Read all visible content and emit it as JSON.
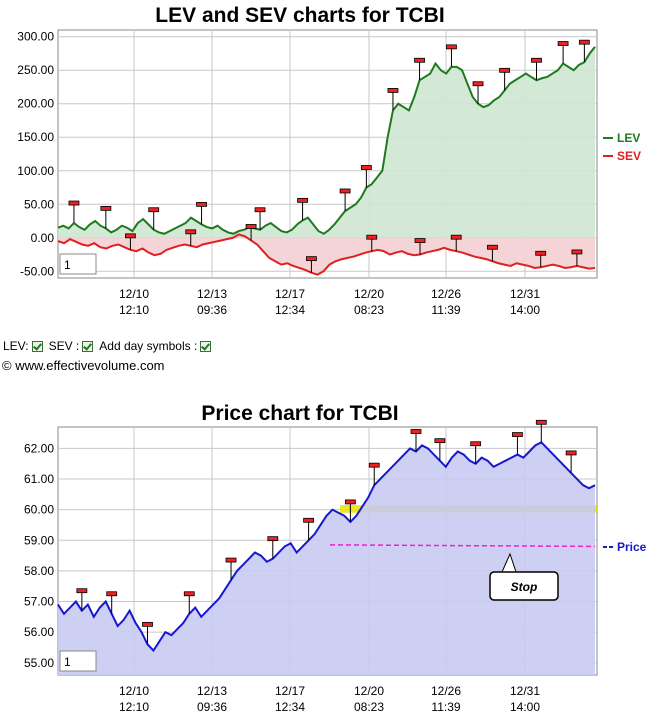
{
  "chart_data": [
    {
      "type": "line",
      "title": "LEV and SEV charts for TCBI",
      "ylim": [
        -60,
        310
      ],
      "yticks": [
        "300.00",
        "250.00",
        "200.00",
        "150.00",
        "100.00",
        "50.00",
        "0.00",
        "-50.00"
      ],
      "x_tick_labels": [
        [
          "12/10",
          "12:10"
        ],
        [
          "12/13",
          "09:36"
        ],
        [
          "12/17",
          "12:34"
        ],
        [
          "12/20",
          "08:23"
        ],
        [
          "12/26",
          "11:39"
        ],
        [
          "12/31",
          "14:00"
        ]
      ],
      "legend": [
        "LEV",
        "SEV"
      ],
      "legend_position": "right",
      "grid": true,
      "zoom_box": "1",
      "series": [
        {
          "name": "LEV",
          "color": "#1e7a1e",
          "fill": "#cfe5d2",
          "values": [
            15,
            18,
            14,
            22,
            16,
            12,
            20,
            25,
            18,
            14,
            8,
            12,
            18,
            15,
            10,
            22,
            28,
            20,
            12,
            8,
            6,
            10,
            14,
            18,
            22,
            30,
            25,
            20,
            16,
            14,
            18,
            12,
            8,
            6,
            10,
            12,
            16,
            14,
            12,
            18,
            22,
            16,
            10,
            8,
            12,
            20,
            26,
            30,
            20,
            10,
            6,
            12,
            20,
            30,
            40,
            45,
            50,
            60,
            75,
            80,
            90,
            100,
            150,
            190,
            200,
            195,
            190,
            210,
            235,
            240,
            245,
            260,
            250,
            245,
            255,
            255,
            250,
            230,
            210,
            200,
            195,
            198,
            205,
            210,
            220,
            230,
            235,
            240,
            245,
            240,
            235,
            238,
            240,
            245,
            250,
            260,
            255,
            250,
            258,
            262,
            275,
            285
          ]
        },
        {
          "name": "SEV",
          "color": "#e02020",
          "fill": "#f3cfd3",
          "values": [
            -5,
            -8,
            -2,
            -6,
            -10,
            -12,
            -8,
            -14,
            -16,
            -12,
            -10,
            -14,
            -18,
            -20,
            -16,
            -22,
            -26,
            -24,
            -18,
            -15,
            -12,
            -10,
            -12,
            -14,
            -10,
            -8,
            -6,
            -4,
            -2,
            0,
            5,
            2,
            -4,
            -10,
            -20,
            -30,
            -35,
            -40,
            -38,
            -42,
            -45,
            -48,
            -52,
            -55,
            -50,
            -40,
            -35,
            -32,
            -30,
            -28,
            -25,
            -22,
            -20,
            -18,
            -20,
            -25,
            -22,
            -20,
            -24,
            -26,
            -25,
            -22,
            -20,
            -18,
            -15,
            -18,
            -20,
            -22,
            -25,
            -28,
            -30,
            -32,
            -35,
            -38,
            -40,
            -42,
            -38,
            -40,
            -42,
            -45,
            -44,
            -42,
            -40,
            -42,
            -45,
            -44,
            -42,
            -44,
            -46,
            -45
          ]
        }
      ]
    },
    {
      "type": "line",
      "title": "Price chart for TCBI",
      "ylim": [
        54.6,
        62.7
      ],
      "yticks": [
        "62.00",
        "61.00",
        "60.00",
        "59.00",
        "58.00",
        "57.00",
        "56.00",
        "55.00"
      ],
      "x_tick_labels": [
        [
          "12/10",
          "12:10"
        ],
        [
          "12/13",
          "09:36"
        ],
        [
          "12/17",
          "12:34"
        ],
        [
          "12/20",
          "08:23"
        ],
        [
          "12/26",
          "11:39"
        ],
        [
          "12/31",
          "14:00"
        ]
      ],
      "legend": [
        "Price"
      ],
      "legend_position": "right",
      "grid": true,
      "zoom_box": "1",
      "annotation": "Stop",
      "series": [
        {
          "name": "Price",
          "color": "#1818cc",
          "fill": "#c8caf2",
          "values": [
            56.9,
            56.6,
            56.8,
            57.0,
            56.7,
            56.9,
            56.5,
            56.8,
            57.0,
            56.6,
            56.2,
            56.4,
            56.7,
            56.3,
            56.0,
            55.6,
            55.4,
            55.7,
            56.0,
            55.9,
            56.1,
            56.3,
            56.6,
            56.8,
            56.5,
            56.7,
            56.9,
            57.1,
            57.4,
            57.7,
            58.0,
            58.2,
            58.4,
            58.6,
            58.5,
            58.3,
            58.4,
            58.6,
            58.8,
            58.9,
            58.6,
            58.8,
            59.0,
            59.2,
            59.5,
            59.8,
            60.0,
            59.9,
            59.8,
            59.6,
            59.8,
            60.1,
            60.4,
            60.8,
            61.0,
            61.2,
            61.4,
            61.6,
            61.8,
            62.0,
            61.9,
            62.1,
            62.0,
            61.8,
            61.6,
            61.4,
            61.7,
            61.9,
            61.8,
            61.6,
            61.5,
            61.7,
            61.6,
            61.4,
            61.5,
            61.6,
            61.7,
            61.8,
            61.7,
            61.9,
            62.1,
            62.2,
            62.0,
            61.8,
            61.6,
            61.4,
            61.2,
            61.0,
            60.8,
            60.7,
            60.8
          ]
        },
        {
          "name": "Stop",
          "color": "#ee22cc",
          "values": [
            58.85,
            58.8
          ]
        }
      ],
      "band": {
        "from": 59.9,
        "to": 60.15,
        "color": "#e8e200"
      }
    }
  ],
  "controls": {
    "lev_label": "LEV:",
    "sev_label": "SEV :",
    "day_label": "Add day symbols :"
  },
  "copyright": "© www.effectivevolume.com",
  "colors": {
    "plot_bg": "#ffffff",
    "grid": "#c8c8c8",
    "axis": "#888888"
  }
}
